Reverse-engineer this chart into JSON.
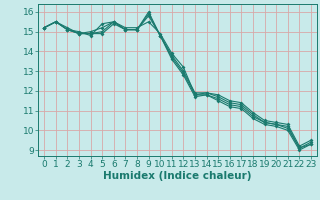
{
  "xlabel": "Humidex (Indice chaleur)",
  "xlim": [
    -0.5,
    23.5
  ],
  "ylim": [
    8.7,
    16.4
  ],
  "yticks": [
    9,
    10,
    11,
    12,
    13,
    14,
    15,
    16
  ],
  "xticks": [
    0,
    1,
    2,
    3,
    4,
    5,
    6,
    7,
    8,
    9,
    10,
    11,
    12,
    13,
    14,
    15,
    16,
    17,
    18,
    19,
    20,
    21,
    22,
    23
  ],
  "bg_color": "#c8eaea",
  "line_color": "#1a7a6e",
  "grid_color": "#d8a8a8",
  "series": [
    [
      15.2,
      15.5,
      15.1,
      15.0,
      14.8,
      15.4,
      15.5,
      15.2,
      15.2,
      15.5,
      14.9,
      13.9,
      13.2,
      11.8,
      11.9,
      11.8,
      11.5,
      11.4,
      10.9,
      10.5,
      10.4,
      10.3,
      9.2,
      9.5
    ],
    [
      15.2,
      15.5,
      15.2,
      14.9,
      15.0,
      15.2,
      15.5,
      15.1,
      15.1,
      15.9,
      14.8,
      13.8,
      13.0,
      11.9,
      11.9,
      11.7,
      11.4,
      11.3,
      10.8,
      10.4,
      10.3,
      10.2,
      9.1,
      9.4
    ],
    [
      15.2,
      15.5,
      15.1,
      14.9,
      14.9,
      15.0,
      15.5,
      15.1,
      15.1,
      16.0,
      14.8,
      13.7,
      12.9,
      11.8,
      11.8,
      11.6,
      11.3,
      11.2,
      10.7,
      10.4,
      10.3,
      10.1,
      9.1,
      9.3
    ],
    [
      15.2,
      15.5,
      15.1,
      14.9,
      14.9,
      14.9,
      15.4,
      15.1,
      15.1,
      15.8,
      14.8,
      13.6,
      12.8,
      11.7,
      11.8,
      11.5,
      11.2,
      11.1,
      10.6,
      10.3,
      10.2,
      10.0,
      9.0,
      9.3
    ]
  ],
  "tick_fontsize": 6.5,
  "xlabel_fontsize": 7.5
}
